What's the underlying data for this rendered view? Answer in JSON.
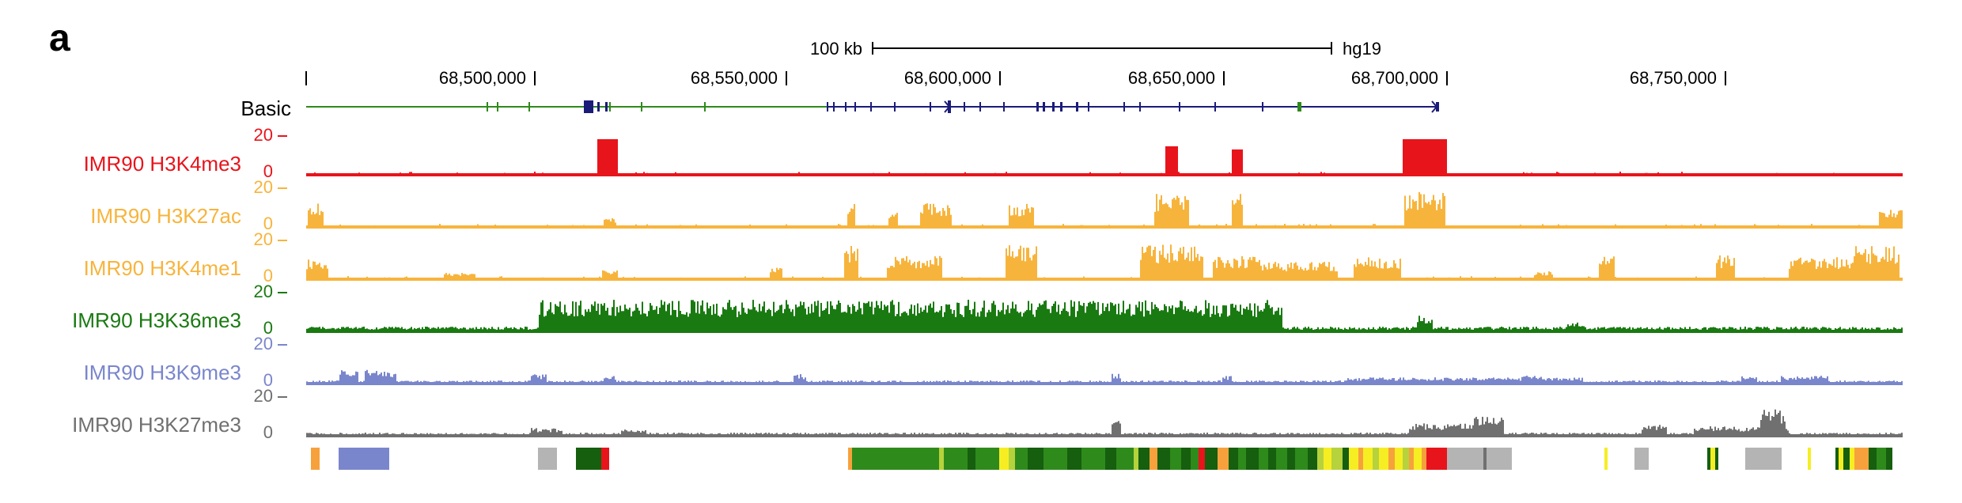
{
  "panel_label": "a",
  "scale_bar": {
    "label": "100 kb",
    "assembly": "hg19"
  },
  "coordinate_ticks": [
    "68,500,000",
    "68,550,000",
    "68,600,000",
    "68,650,000",
    "68,700,000",
    "68,750,000"
  ],
  "gene_track": {
    "label": "Basic"
  },
  "tracks": [
    {
      "name": "IMR90 H3K4me3",
      "max": "20",
      "min": "0",
      "color": "#e8141c"
    },
    {
      "name": "IMR90 H3K27ac",
      "max": "20",
      "min": "0",
      "color": "#f7b43c"
    },
    {
      "name": "IMR90 H3K4me1",
      "max": "20",
      "min": "0",
      "color": "#f7b43c"
    },
    {
      "name": "IMR90 H3K36me3",
      "max": "20",
      "min": "0",
      "color": "#1a7a12"
    },
    {
      "name": "IMR90 H3K9me3",
      "max": "20",
      "min": "0",
      "color": "#7a86cc"
    },
    {
      "name": "IMR90 H3K27me3",
      "max": "20",
      "min": "0",
      "color": "#707070"
    }
  ],
  "chromatin_state_colors": {
    "orange": "#f7a13c",
    "blue": "#7a86cc",
    "gray": "#b4b4b4",
    "dark_green": "#155f0e",
    "green": "#2f8a1c",
    "lime": "#b6d23c",
    "yellow": "#f6ee22",
    "red": "#e8141c",
    "dark_gray": "#707070"
  }
}
